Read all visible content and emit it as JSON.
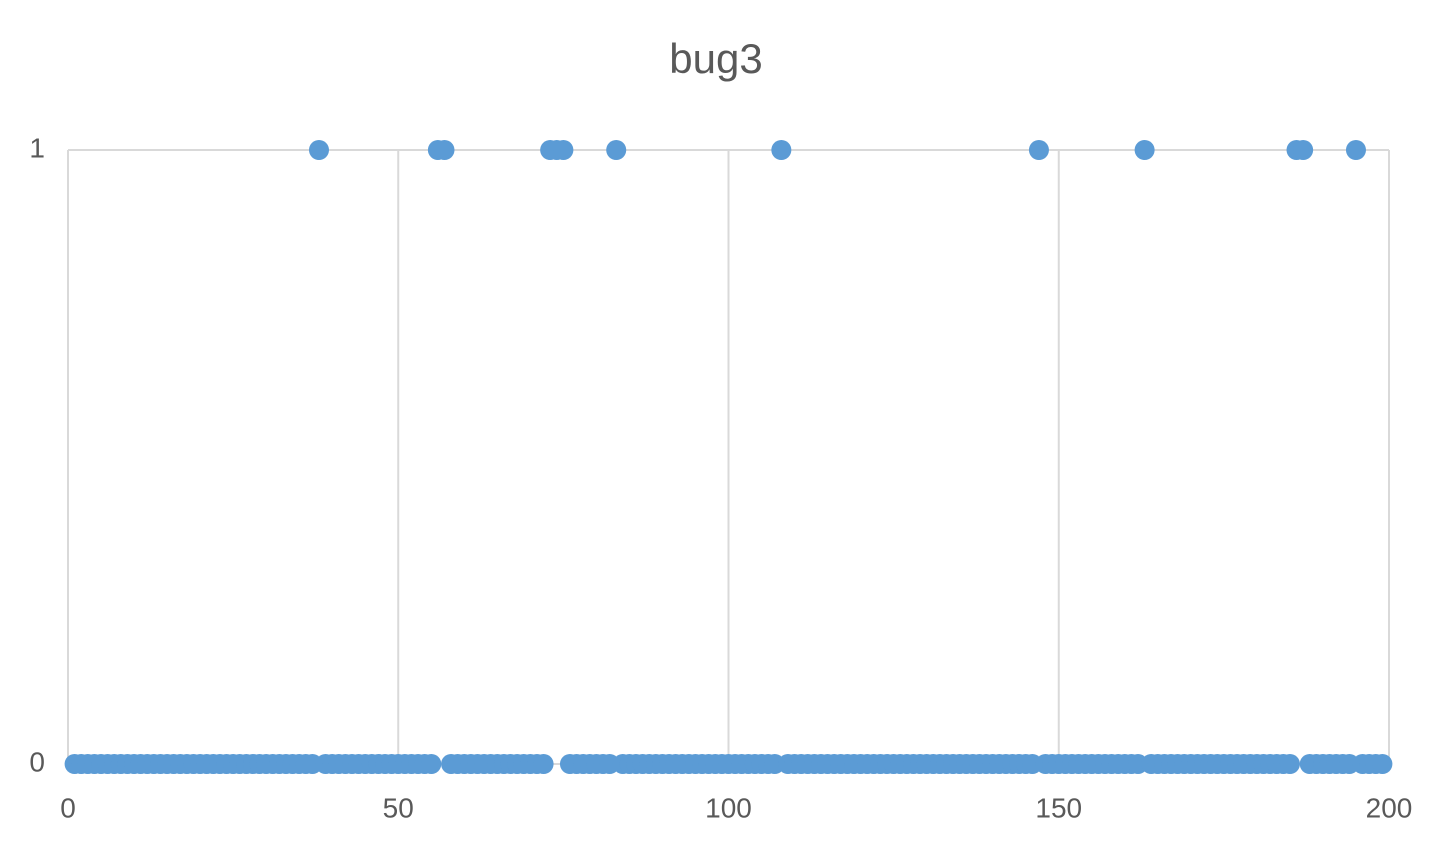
{
  "chart_data": {
    "type": "scatter",
    "title": "bug3",
    "x": [
      1,
      2,
      3,
      4,
      5,
      6,
      7,
      8,
      9,
      10,
      11,
      12,
      13,
      14,
      15,
      16,
      17,
      18,
      19,
      20,
      21,
      22,
      23,
      24,
      25,
      26,
      27,
      28,
      29,
      30,
      31,
      32,
      33,
      34,
      35,
      36,
      37,
      38,
      39,
      40,
      41,
      42,
      43,
      44,
      45,
      46,
      47,
      48,
      49,
      50,
      51,
      52,
      53,
      54,
      55,
      56,
      57,
      58,
      59,
      60,
      61,
      62,
      63,
      64,
      65,
      66,
      67,
      68,
      69,
      70,
      71,
      72,
      73,
      74,
      75,
      76,
      77,
      78,
      79,
      80,
      81,
      82,
      83,
      84,
      85,
      86,
      87,
      88,
      89,
      90,
      91,
      92,
      93,
      94,
      95,
      96,
      97,
      98,
      99,
      100,
      101,
      102,
      103,
      104,
      105,
      106,
      107,
      108,
      109,
      110,
      111,
      112,
      113,
      114,
      115,
      116,
      117,
      118,
      119,
      120,
      121,
      122,
      123,
      124,
      125,
      126,
      127,
      128,
      129,
      130,
      131,
      132,
      133,
      134,
      135,
      136,
      137,
      138,
      139,
      140,
      141,
      142,
      143,
      144,
      145,
      146,
      147,
      148,
      149,
      150,
      151,
      152,
      153,
      154,
      155,
      156,
      157,
      158,
      159,
      160,
      161,
      162,
      163,
      164,
      165,
      166,
      167,
      168,
      169,
      170,
      171,
      172,
      173,
      174,
      175,
      176,
      177,
      178,
      179,
      180,
      181,
      182,
      183,
      184,
      185,
      186,
      187,
      188,
      189,
      190,
      191,
      192,
      193,
      194,
      195,
      196,
      197,
      198,
      199
    ],
    "values": [
      0,
      0,
      0,
      0,
      0,
      0,
      0,
      0,
      0,
      0,
      0,
      0,
      0,
      0,
      0,
      0,
      0,
      0,
      0,
      0,
      0,
      0,
      0,
      0,
      0,
      0,
      0,
      0,
      0,
      0,
      0,
      0,
      0,
      0,
      0,
      0,
      0,
      1,
      0,
      0,
      0,
      0,
      0,
      0,
      0,
      0,
      0,
      0,
      0,
      0,
      0,
      0,
      0,
      0,
      0,
      1,
      1,
      0,
      0,
      0,
      0,
      0,
      0,
      0,
      0,
      0,
      0,
      0,
      0,
      0,
      0,
      0,
      1,
      1,
      1,
      0,
      0,
      0,
      0,
      0,
      0,
      0,
      1,
      0,
      0,
      0,
      0,
      0,
      0,
      0,
      0,
      0,
      0,
      0,
      0,
      0,
      0,
      0,
      0,
      0,
      0,
      0,
      0,
      0,
      0,
      0,
      0,
      1,
      0,
      0,
      0,
      0,
      0,
      0,
      0,
      0,
      0,
      0,
      0,
      0,
      0,
      0,
      0,
      0,
      0,
      0,
      0,
      0,
      0,
      0,
      0,
      0,
      0,
      0,
      0,
      0,
      0,
      0,
      0,
      0,
      0,
      0,
      0,
      0,
      0,
      0,
      1,
      0,
      0,
      0,
      0,
      0,
      0,
      0,
      0,
      0,
      0,
      0,
      0,
      0,
      0,
      0,
      1,
      0,
      0,
      0,
      0,
      0,
      0,
      0,
      0,
      0,
      0,
      0,
      0,
      0,
      0,
      0,
      0,
      0,
      0,
      0,
      0,
      0,
      0,
      1,
      1,
      0,
      0,
      0,
      0,
      0,
      0,
      0,
      1,
      0,
      0,
      0,
      0
    ],
    "color": "#5b9bd5",
    "xlim": [
      0,
      200
    ],
    "xticks": [
      0,
      50,
      100,
      150,
      200
    ],
    "ylim": [
      0,
      1
    ],
    "yticks": [
      0,
      1
    ],
    "grid": true
  }
}
